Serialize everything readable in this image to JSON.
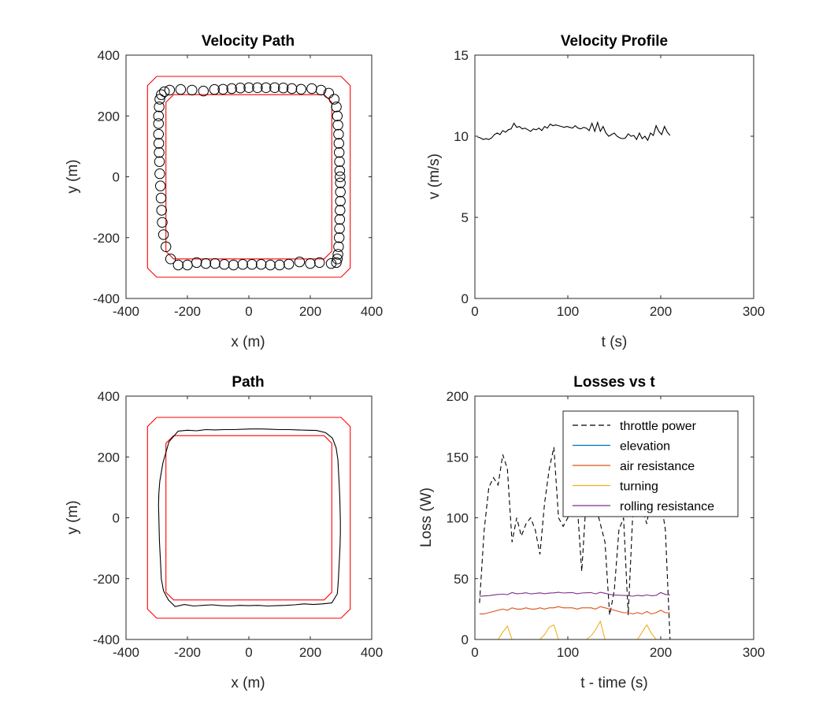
{
  "chart_data": [
    {
      "type": "scatter",
      "title": "Velocity Path",
      "xlabel": "x (m)",
      "ylabel": "y (m)",
      "xlim": [
        -400,
        400
      ],
      "ylim": [
        -400,
        400
      ],
      "xticks": [
        -400,
        -200,
        0,
        200,
        400
      ],
      "yticks": [
        -400,
        -200,
        0,
        200,
        400
      ],
      "grid": false,
      "colors": {
        "boundary": "#ff0000",
        "markers": "#000000"
      },
      "boundaries": [
        {
          "name": "outer track edge",
          "x": [
            -300,
            300,
            330,
            330,
            300,
            -300,
            -330,
            -330,
            -300
          ],
          "y": [
            330,
            330,
            300,
            -300,
            -330,
            -330,
            -300,
            300,
            330
          ]
        },
        {
          "name": "inner track edge",
          "x": [
            -245,
            245,
            270,
            270,
            245,
            -245,
            -270,
            -270,
            -245
          ],
          "y": [
            270,
            270,
            245,
            -245,
            -270,
            -270,
            -245,
            245,
            270
          ]
        }
      ],
      "series": [
        {
          "marker": "open-circle",
          "x": [
            -222,
            -185,
            -148,
            -112,
            -84,
            -56,
            -28,
            0,
            28,
            56,
            84,
            112,
            140,
            170,
            205,
            235,
            260,
            278,
            285,
            288,
            290,
            292,
            293,
            294,
            295,
            296,
            297,
            298,
            298,
            298,
            297,
            296,
            295,
            294,
            292,
            290,
            288,
            285,
            268,
            230,
            200,
            165,
            130,
            100,
            70,
            40,
            10,
            -20,
            -50,
            -80,
            -110,
            -140,
            -170,
            -200,
            -230,
            -255,
            -270,
            -278,
            -282,
            -284,
            -286,
            -288,
            -290,
            -291,
            -292,
            -293,
            -294,
            -294,
            -294,
            -292,
            -290,
            -285,
            -275,
            -258
          ],
          "y": [
            287,
            285,
            282,
            287,
            288,
            290,
            292,
            293,
            293,
            293,
            293,
            292,
            290,
            288,
            290,
            285,
            275,
            255,
            230,
            200,
            170,
            140,
            110,
            80,
            50,
            20,
            0,
            -20,
            -50,
            -80,
            -110,
            -140,
            -170,
            -200,
            -230,
            -255,
            -270,
            -282,
            -285,
            -282,
            -285,
            -280,
            -287,
            -290,
            -290,
            -288,
            -288,
            -288,
            -290,
            -288,
            -285,
            -285,
            -282,
            -290,
            -290,
            -270,
            -230,
            -190,
            -150,
            -110,
            -70,
            -30,
            10,
            50,
            80,
            110,
            140,
            175,
            200,
            230,
            255,
            270,
            280,
            285
          ]
        }
      ]
    },
    {
      "type": "line",
      "title": "Velocity Profile",
      "xlabel": "t (s)",
      "ylabel": "v (m/s)",
      "xlim": [
        0,
        300
      ],
      "ylim": [
        0,
        15
      ],
      "xticks": [
        0,
        100,
        200,
        300
      ],
      "yticks": [
        0,
        5,
        10,
        15
      ],
      "grid": false,
      "colors": {
        "line": "#000000"
      },
      "series": [
        {
          "x": [
            3,
            6,
            9,
            12,
            15,
            18,
            21,
            24,
            27,
            30,
            33,
            36,
            39,
            42,
            45,
            48,
            51,
            54,
            57,
            60,
            63,
            66,
            69,
            72,
            75,
            78,
            81,
            84,
            87,
            90,
            93,
            96,
            99,
            102,
            105,
            108,
            111,
            114,
            117,
            120,
            123,
            126,
            129,
            132,
            135,
            138,
            141,
            144,
            147,
            150,
            153,
            156,
            159,
            162,
            165,
            168,
            171,
            174,
            177,
            180,
            183,
            186,
            189,
            192,
            195,
            198,
            201,
            204,
            207,
            210
          ],
          "values": [
            9.95,
            9.9,
            9.8,
            9.85,
            9.8,
            9.9,
            10.1,
            10.2,
            10.1,
            10.35,
            10.25,
            10.4,
            10.45,
            10.8,
            10.55,
            10.6,
            10.45,
            10.5,
            10.4,
            10.3,
            10.45,
            10.4,
            10.5,
            10.35,
            10.6,
            10.5,
            10.75,
            10.65,
            10.7,
            10.65,
            10.6,
            10.55,
            10.6,
            10.55,
            10.5,
            10.65,
            10.5,
            10.45,
            10.55,
            10.5,
            10.35,
            10.8,
            10.3,
            10.85,
            10.3,
            10.6,
            10.2,
            10.0,
            10.1,
            10.2,
            10.0,
            9.9,
            9.85,
            9.9,
            10.15,
            10.0,
            10.05,
            9.8,
            10.2,
            9.85,
            10.0,
            9.75,
            10.2,
            10.05,
            10.65,
            10.3,
            10.1,
            10.6,
            10.25,
            10.05
          ]
        }
      ]
    },
    {
      "type": "line",
      "title": "Path",
      "xlabel": "x (m)",
      "ylabel": "y (m)",
      "xlim": [
        -400,
        400
      ],
      "ylim": [
        -400,
        400
      ],
      "xticks": [
        -400,
        -200,
        0,
        200,
        400
      ],
      "yticks": [
        -400,
        -200,
        0,
        200,
        400
      ],
      "grid": false,
      "colors": {
        "boundary": "#ff0000",
        "path": "#000000"
      },
      "boundaries": [
        {
          "name": "outer track edge",
          "x": [
            -300,
            300,
            330,
            330,
            300,
            -300,
            -330,
            -330,
            -300
          ],
          "y": [
            330,
            330,
            300,
            -300,
            -330,
            -330,
            -300,
            300,
            330
          ]
        },
        {
          "name": "inner track edge",
          "x": [
            -245,
            245,
            270,
            270,
            245,
            -245,
            -270,
            -270,
            -245
          ],
          "y": [
            270,
            270,
            245,
            -245,
            -270,
            -270,
            -245,
            245,
            270
          ]
        }
      ],
      "series": [
        {
          "x": [
            -230,
            -200,
            -170,
            -140,
            -110,
            -80,
            -50,
            -20,
            10,
            40,
            70,
            100,
            130,
            160,
            190,
            220,
            250,
            272,
            284,
            290,
            292,
            294,
            296,
            297,
            298,
            298,
            297,
            295,
            293,
            291,
            288,
            270,
            240,
            210,
            180,
            150,
            120,
            90,
            60,
            30,
            0,
            -30,
            -60,
            -90,
            -120,
            -150,
            -180,
            -210,
            -240,
            -262,
            -278,
            -285,
            -287,
            -289,
            -291,
            -292,
            -293,
            -294,
            -293,
            -290,
            -280,
            -260,
            -230
          ],
          "y": [
            285,
            288,
            286,
            290,
            289,
            290,
            290,
            291,
            292,
            292,
            291,
            290,
            290,
            289,
            288,
            287,
            280,
            262,
            230,
            190,
            150,
            110,
            70,
            30,
            -10,
            -50,
            -90,
            -130,
            -170,
            -210,
            -250,
            -280,
            -283,
            -285,
            -283,
            -286,
            -288,
            -289,
            -290,
            -288,
            -289,
            -288,
            -290,
            -289,
            -286,
            -288,
            -290,
            -285,
            -292,
            -270,
            -240,
            -200,
            -160,
            -120,
            -80,
            -40,
            0,
            40,
            80,
            120,
            180,
            250,
            285
          ]
        }
      ]
    },
    {
      "type": "line",
      "title": "Losses vs t",
      "xlabel": "t - time (s)",
      "ylabel": "Loss (W)",
      "xlim": [
        0,
        300
      ],
      "ylim": [
        0,
        200
      ],
      "xticks": [
        0,
        100,
        200,
        300
      ],
      "yticks": [
        0,
        50,
        100,
        150,
        200
      ],
      "grid": false,
      "legend": "top-right",
      "series": [
        {
          "name": "throttle power",
          "color": "#000000",
          "dash": "dashed",
          "x": [
            5,
            10,
            15,
            20,
            25,
            30,
            35,
            40,
            45,
            50,
            55,
            60,
            65,
            70,
            75,
            80,
            85,
            90,
            95,
            100,
            105,
            110,
            115,
            120,
            125,
            130,
            135,
            140,
            145,
            150,
            155,
            160,
            165,
            170,
            175,
            180,
            185,
            190,
            195,
            200,
            205,
            210
          ],
          "values": [
            30,
            90,
            125,
            133,
            127,
            152,
            140,
            80,
            100,
            85,
            95,
            100,
            90,
            70,
            112,
            140,
            158,
            100,
            93,
            100,
            120,
            112,
            56,
            118,
            120,
            110,
            95,
            80,
            20,
            40,
            90,
            100,
            20,
            105,
            110,
            108,
            95,
            120,
            112,
            115,
            90,
            0
          ]
        },
        {
          "name": "elevation",
          "color": "#0072BD",
          "x": [
            5,
            210
          ],
          "values": [
            0,
            0
          ]
        },
        {
          "name": "air resistance",
          "color": "#D95319",
          "x": [
            5,
            10,
            15,
            20,
            25,
            30,
            35,
            40,
            45,
            50,
            55,
            60,
            65,
            70,
            75,
            80,
            85,
            90,
            95,
            100,
            105,
            110,
            115,
            120,
            125,
            130,
            135,
            140,
            145,
            150,
            155,
            160,
            165,
            170,
            175,
            180,
            185,
            190,
            195,
            200,
            205,
            210
          ],
          "values": [
            21,
            21,
            22,
            23,
            24,
            25,
            24,
            26,
            25,
            25,
            26,
            25,
            25,
            26,
            25,
            26,
            26,
            27,
            26,
            26,
            26,
            25,
            26,
            26,
            26,
            25,
            27,
            26,
            25,
            24,
            23,
            22,
            22,
            21,
            22,
            21,
            23,
            21,
            22,
            24,
            22,
            22
          ]
        },
        {
          "name": "turning",
          "color": "#EDB120",
          "x": [
            5,
            25,
            30,
            35,
            40,
            70,
            75,
            80,
            85,
            90,
            120,
            125,
            130,
            135,
            140,
            175,
            180,
            185,
            190,
            195,
            210
          ],
          "values": [
            0,
            0,
            6,
            11,
            0,
            0,
            4,
            10,
            12,
            0,
            0,
            3,
            8,
            15,
            0,
            0,
            6,
            12,
            5,
            0,
            0
          ]
        },
        {
          "name": "rolling resistance",
          "color": "#7E2F8E",
          "x": [
            5,
            10,
            15,
            20,
            25,
            30,
            35,
            40,
            45,
            50,
            55,
            60,
            65,
            70,
            75,
            80,
            85,
            90,
            95,
            100,
            105,
            110,
            115,
            120,
            125,
            130,
            135,
            140,
            145,
            150,
            155,
            160,
            165,
            170,
            175,
            180,
            185,
            190,
            195,
            200,
            205,
            210
          ],
          "values": [
            35.5,
            35.8,
            36.0,
            36.5,
            37.0,
            37.2,
            36.8,
            38.5,
            37.6,
            37.8,
            38.4,
            37.5,
            37.8,
            38.3,
            37.6,
            38.1,
            38.3,
            38.8,
            38.2,
            38.4,
            38.5,
            37.6,
            38.2,
            38.4,
            38.5,
            37.5,
            38.8,
            38.0,
            37.0,
            36.5,
            36.4,
            36.2,
            36.0,
            35.6,
            36.3,
            35.8,
            36.6,
            36.0,
            36.2,
            38.6,
            37.0,
            36.5
          ]
        }
      ]
    }
  ]
}
